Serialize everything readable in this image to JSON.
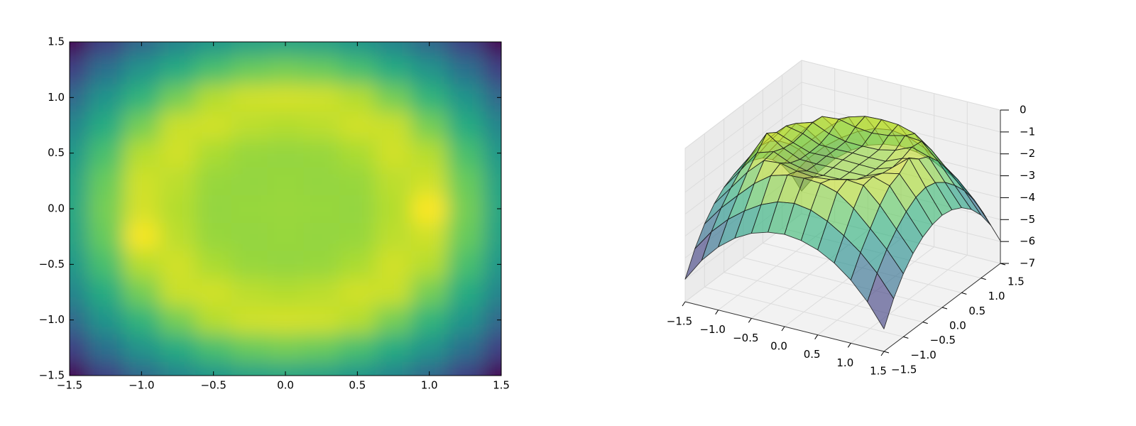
{
  "chart_data": [
    {
      "type": "heatmap",
      "colormap": "viridis",
      "x": [
        -1.5,
        -1.25,
        -1,
        -0.75,
        -0.5,
        -0.25,
        0,
        0.25,
        0.5,
        0.75,
        1,
        1.25,
        1.5
      ],
      "y": [
        -1.5,
        -1.25,
        -1,
        -0.75,
        -0.5,
        -0.25,
        0,
        0.25,
        0.5,
        0.75,
        1,
        1.25,
        1.5
      ],
      "z": [
        [
          -5.97,
          -4.92,
          -4.12,
          -3.53,
          -3.12,
          -2.88,
          -2.79,
          -2.88,
          -3.12,
          -3.53,
          -4.12,
          -4.92,
          -5.97
        ],
        [
          -4.92,
          -3.95,
          -3.2,
          -2.62,
          -2.15,
          -1.83,
          -1.71,
          -1.83,
          -2.15,
          -2.62,
          -3.2,
          -3.95,
          -4.92
        ],
        [
          -4.12,
          -3.2,
          -2.44,
          -1.71,
          -1.16,
          -0.94,
          -0.9,
          -0.94,
          -1.16,
          -1.71,
          -2.44,
          -3.2,
          -4.12
        ],
        [
          -3.53,
          -2.62,
          -1.71,
          -0.99,
          -0.92,
          -1.1,
          -1.18,
          -1.1,
          -0.92,
          -0.99,
          -1.71,
          -2.62,
          -3.53
        ],
        [
          -3.12,
          -2.15,
          -1.16,
          -0.92,
          -1.25,
          -1.42,
          -1.44,
          -1.42,
          -1.25,
          -0.92,
          -1.16,
          -2.15,
          -3.12
        ],
        [
          -2.88,
          -1.83,
          -0.6,
          -1.1,
          -1.42,
          -1.44,
          -1.42,
          -1.44,
          -1.42,
          -1.1,
          -0.94,
          -1.83,
          -2.88
        ],
        [
          -2.79,
          -1.71,
          -0.9,
          -1.18,
          -1.44,
          -1.42,
          -1.4,
          -1.42,
          -1.44,
          -1.18,
          -0.55,
          -1.71,
          -2.79
        ],
        [
          -2.88,
          -1.83,
          -0.94,
          -1.1,
          -1.42,
          -1.44,
          -1.42,
          -1.44,
          -1.42,
          -1.1,
          -0.94,
          -1.83,
          -2.88
        ],
        [
          -3.12,
          -2.15,
          -1.16,
          -0.92,
          -1.25,
          -1.42,
          -1.44,
          -1.42,
          -1.25,
          -0.92,
          -1.16,
          -2.15,
          -3.12
        ],
        [
          -3.53,
          -2.62,
          -1.71,
          -0.99,
          -0.92,
          -1.1,
          -1.18,
          -1.1,
          -0.92,
          -0.99,
          -1.71,
          -2.62,
          -3.53
        ],
        [
          -4.12,
          -3.2,
          -2.44,
          -1.71,
          -1.16,
          -0.94,
          -0.9,
          -0.94,
          -1.16,
          -1.71,
          -2.44,
          -3.2,
          -4.12
        ],
        [
          -4.92,
          -3.95,
          -3.2,
          -2.62,
          -2.15,
          -1.83,
          -1.71,
          -1.83,
          -2.15,
          -2.62,
          -3.2,
          -3.95,
          -4.92
        ],
        [
          -5.97,
          -4.92,
          -4.12,
          -3.53,
          -3.12,
          -2.88,
          -2.79,
          -2.88,
          -3.12,
          -3.53,
          -4.12,
          -4.92,
          -5.97
        ]
      ],
      "xlim": [
        -1.5,
        1.5
      ],
      "ylim": [
        -1.5,
        1.5
      ],
      "xticks": [
        {
          "value": -1.5,
          "label": "−1.5"
        },
        {
          "value": -1,
          "label": "−1.0"
        },
        {
          "value": -0.5,
          "label": "−0.5"
        },
        {
          "value": 0,
          "label": "0.0"
        },
        0.5,
        {
          "value": 1,
          "label": "1.0"
        },
        1.5
      ],
      "yticks": [
        {
          "value": -1.5,
          "label": "−1.5"
        },
        {
          "value": -1,
          "label": "−1.0"
        },
        {
          "value": -0.5,
          "label": "−0.5"
        },
        {
          "value": 0,
          "label": "0.0"
        },
        0.5,
        {
          "value": 1,
          "label": "1.0"
        },
        1.5
      ]
    },
    {
      "type": "surface",
      "colormap": "viridis",
      "x": [
        -1.5,
        -1.25,
        -1,
        -0.75,
        -0.5,
        -0.25,
        0,
        0.25,
        0.5,
        0.75,
        1,
        1.25,
        1.5
      ],
      "y": [
        -1.5,
        -1.25,
        -1,
        -0.75,
        -0.5,
        -0.25,
        0,
        0.25,
        0.5,
        0.75,
        1,
        1.25,
        1.5
      ],
      "z": [
        [
          -5.97,
          -4.92,
          -4.12,
          -3.53,
          -3.12,
          -2.88,
          -2.79,
          -2.88,
          -3.12,
          -3.53,
          -4.12,
          -4.92,
          -5.97
        ],
        [
          -4.92,
          -3.95,
          -3.2,
          -2.62,
          -2.15,
          -1.83,
          -1.71,
          -1.83,
          -2.15,
          -2.62,
          -3.2,
          -3.95,
          -4.92
        ],
        [
          -4.12,
          -3.2,
          -2.44,
          -1.71,
          -1.16,
          -0.94,
          -0.9,
          -0.94,
          -1.16,
          -1.71,
          -2.44,
          -3.2,
          -4.12
        ],
        [
          -3.53,
          -2.62,
          -1.71,
          -0.99,
          -0.92,
          -1.1,
          -1.18,
          -1.1,
          -0.92,
          -0.99,
          -1.71,
          -2.62,
          -3.53
        ],
        [
          -3.12,
          -2.15,
          -1.16,
          -0.92,
          -1.25,
          -1.42,
          -1.44,
          -1.42,
          -1.25,
          -0.92,
          -1.16,
          -2.15,
          -3.12
        ],
        [
          -2.88,
          -1.83,
          -0.6,
          -1.1,
          -1.42,
          -1.44,
          -1.42,
          -1.44,
          -1.42,
          -1.1,
          -0.94,
          -1.83,
          -2.88
        ],
        [
          -2.79,
          -1.71,
          -0.9,
          -1.18,
          -1.44,
          -1.42,
          -1.4,
          -1.42,
          -1.44,
          -1.18,
          -0.55,
          -1.71,
          -2.79
        ],
        [
          -2.88,
          -1.83,
          -0.94,
          -1.1,
          -1.42,
          -1.44,
          -1.42,
          -1.44,
          -1.42,
          -1.1,
          -0.94,
          -1.83,
          -2.88
        ],
        [
          -3.12,
          -2.15,
          -1.16,
          -0.92,
          -1.25,
          -1.42,
          -1.44,
          -1.42,
          -1.25,
          -0.92,
          -1.16,
          -2.15,
          -3.12
        ],
        [
          -3.53,
          -2.62,
          -1.71,
          -0.99,
          -0.92,
          -1.1,
          -1.18,
          -1.1,
          -0.92,
          -0.99,
          -1.71,
          -2.62,
          -3.53
        ],
        [
          -4.12,
          -3.2,
          -2.44,
          -1.71,
          -1.16,
          -0.94,
          -0.9,
          -0.94,
          -1.16,
          -1.71,
          -2.44,
          -3.2,
          -4.12
        ],
        [
          -4.92,
          -3.95,
          -3.2,
          -2.62,
          -2.15,
          -1.83,
          -1.71,
          -1.83,
          -2.15,
          -2.62,
          -3.2,
          -3.95,
          -4.92
        ],
        [
          -5.97,
          -4.92,
          -4.12,
          -3.53,
          -3.12,
          -2.88,
          -2.79,
          -2.88,
          -3.12,
          -3.53,
          -4.12,
          -4.92,
          -5.97
        ]
      ],
      "xlim": [
        -1.5,
        1.5
      ],
      "ylim": [
        -1.5,
        1.5
      ],
      "zlim": [
        -7,
        0
      ],
      "xticks": [
        {
          "value": -1.5,
          "label": "−1.5"
        },
        {
          "value": -1,
          "label": "−1.0"
        },
        {
          "value": -0.5,
          "label": "−0.5"
        },
        {
          "value": 0,
          "label": "0.0"
        },
        0.5,
        {
          "value": 1,
          "label": "1.0"
        },
        1.5
      ],
      "yticks": [
        {
          "value": -1.5,
          "label": "−1.5"
        },
        {
          "value": -1,
          "label": "−1.0"
        },
        {
          "value": -0.5,
          "label": "−0.5"
        },
        {
          "value": 0,
          "label": "0.0"
        },
        0.5,
        {
          "value": 1,
          "label": "1.0"
        },
        1.5
      ],
      "zticks": [
        {
          "value": -7,
          "label": "−7"
        },
        {
          "value": -6,
          "label": "−6"
        },
        {
          "value": -5,
          "label": "−5"
        },
        {
          "value": -4,
          "label": "−4"
        },
        {
          "value": -3,
          "label": "−3"
        },
        {
          "value": -2,
          "label": "−2"
        },
        {
          "value": -1,
          "label": "−1"
        },
        0
      ]
    }
  ]
}
